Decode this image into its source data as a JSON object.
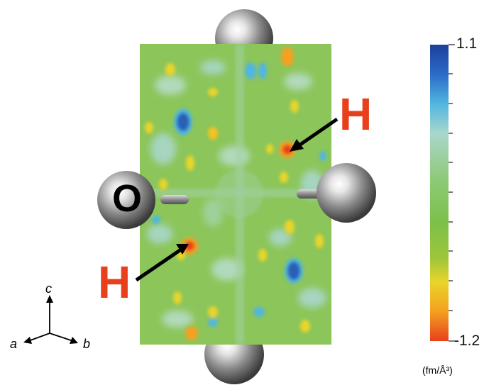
{
  "atoms": {
    "oxygen_label": "O",
    "hydrogen_labels": [
      "H",
      "H"
    ]
  },
  "colorbar": {
    "max_label": "1.1",
    "min_label": "-1.2",
    "max_value": 1.1,
    "min_value": -1.2,
    "unit": "(fm/Å³)",
    "colors": [
      "#1d3f9c",
      "#2a6cc8",
      "#51b6e0",
      "#a9d7cc",
      "#8fca79",
      "#7cc049",
      "#9ec53a",
      "#e8d52a",
      "#f4a020",
      "#e8401c"
    ]
  },
  "axes": {
    "a": "a",
    "b": "b",
    "c": "c"
  }
}
